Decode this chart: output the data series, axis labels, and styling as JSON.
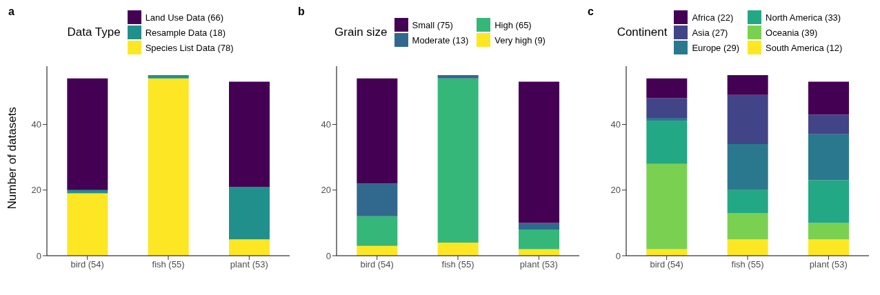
{
  "chart_data": [
    {
      "type": "bar",
      "title": "a",
      "ylabel": "Number of datasets",
      "legend_title": "Data Type",
      "legend": "top",
      "stacked": true,
      "categories": [
        "bird (54)",
        "fish (55)",
        "plant (53)"
      ],
      "series": [
        {
          "name": "Species List Data (78)",
          "color": "#fde725",
          "values": [
            19,
            54,
            5
          ]
        },
        {
          "name": "Resample Data (18)",
          "color": "#21908c",
          "values": [
            1,
            1,
            16
          ]
        },
        {
          "name": "Land Use Data (66)",
          "color": "#440154",
          "values": [
            34,
            0,
            32
          ]
        }
      ],
      "ylim": [
        0,
        57.75
      ],
      "yticks": [
        0,
        20,
        40
      ]
    },
    {
      "type": "bar",
      "title": "b",
      "legend_title": "Grain size",
      "legend": "top",
      "stacked": true,
      "categories": [
        "bird (54)",
        "fish (55)",
        "plant (53)"
      ],
      "series": [
        {
          "name": "Very high (9)",
          "color": "#fde725",
          "values": [
            3,
            4,
            2
          ]
        },
        {
          "name": "High (65)",
          "color": "#35b779",
          "values": [
            9,
            50,
            6
          ]
        },
        {
          "name": "Moderate (13)",
          "color": "#31688e",
          "values": [
            10,
            1,
            2
          ]
        },
        {
          "name": "Small (75)",
          "color": "#440154",
          "values": [
            32,
            0,
            43
          ]
        }
      ],
      "ylim": [
        0,
        57.75
      ],
      "yticks": [
        0,
        20,
        40
      ]
    },
    {
      "type": "bar",
      "title": "c",
      "legend_title": "Continent",
      "legend": "top",
      "stacked": true,
      "categories": [
        "bird (54)",
        "fish (55)",
        "plant (53)"
      ],
      "series": [
        {
          "name": "South America (12)",
          "color": "#fde725",
          "values": [
            2,
            5,
            5
          ]
        },
        {
          "name": "Oceania (39)",
          "color": "#7ad151",
          "values": [
            26,
            8,
            5
          ]
        },
        {
          "name": "North America (33)",
          "color": "#22a884",
          "values": [
            13,
            7,
            13
          ]
        },
        {
          "name": "Europe (29)",
          "color": "#2a788e",
          "values": [
            1,
            14,
            14
          ]
        },
        {
          "name": "Asia (27)",
          "color": "#414487",
          "values": [
            6,
            15,
            6
          ]
        },
        {
          "name": "Africa (22)",
          "color": "#440154",
          "values": [
            6,
            6,
            10
          ]
        }
      ],
      "ylim": [
        0,
        57.75
      ],
      "yticks": [
        0,
        20,
        40
      ]
    }
  ]
}
